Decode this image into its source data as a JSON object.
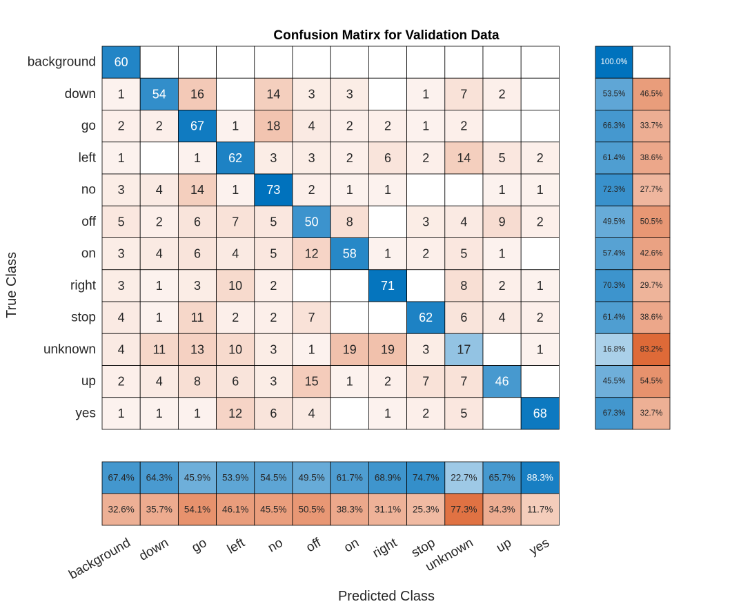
{
  "chart_data": {
    "type": "heatmap",
    "title": "Confusion Matirx for Validation Data",
    "xlabel": "Predicted Class",
    "ylabel": "True Class",
    "classes": [
      "background",
      "down",
      "go",
      "left",
      "no",
      "off",
      "on",
      "right",
      "stop",
      "unknown",
      "up",
      "yes"
    ],
    "matrix": [
      [
        60,
        0,
        0,
        0,
        0,
        0,
        0,
        0,
        0,
        0,
        0,
        0
      ],
      [
        1,
        54,
        16,
        0,
        14,
        3,
        3,
        0,
        1,
        7,
        2,
        0
      ],
      [
        2,
        2,
        67,
        1,
        18,
        4,
        2,
        2,
        1,
        2,
        0,
        0
      ],
      [
        1,
        0,
        1,
        62,
        3,
        3,
        2,
        6,
        2,
        14,
        5,
        2
      ],
      [
        3,
        4,
        14,
        1,
        73,
        2,
        1,
        1,
        0,
        0,
        1,
        1
      ],
      [
        5,
        2,
        6,
        7,
        5,
        50,
        8,
        0,
        3,
        4,
        9,
        2
      ],
      [
        3,
        4,
        6,
        4,
        5,
        12,
        58,
        1,
        2,
        5,
        1,
        0
      ],
      [
        3,
        1,
        3,
        10,
        2,
        0,
        0,
        71,
        0,
        8,
        2,
        1
      ],
      [
        4,
        1,
        11,
        2,
        2,
        7,
        0,
        0,
        62,
        6,
        4,
        2
      ],
      [
        4,
        11,
        13,
        10,
        3,
        1,
        19,
        19,
        3,
        17,
        0,
        1
      ],
      [
        2,
        4,
        8,
        6,
        3,
        15,
        1,
        2,
        7,
        7,
        46,
        0
      ],
      [
        1,
        1,
        1,
        12,
        6,
        4,
        0,
        1,
        2,
        5,
        0,
        68
      ]
    ],
    "row_summary": [
      [
        "100.0%",
        ""
      ],
      [
        "53.5%",
        "46.5%"
      ],
      [
        "66.3%",
        "33.7%"
      ],
      [
        "61.4%",
        "38.6%"
      ],
      [
        "72.3%",
        "27.7%"
      ],
      [
        "49.5%",
        "50.5%"
      ],
      [
        "57.4%",
        "42.6%"
      ],
      [
        "70.3%",
        "29.7%"
      ],
      [
        "61.4%",
        "38.6%"
      ],
      [
        "16.8%",
        "83.2%"
      ],
      [
        "45.5%",
        "54.5%"
      ],
      [
        "67.3%",
        "32.7%"
      ]
    ],
    "column_summary": {
      "correct": [
        "67.4%",
        "64.3%",
        "45.9%",
        "53.9%",
        "54.5%",
        "49.5%",
        "61.7%",
        "68.9%",
        "74.7%",
        "22.7%",
        "65.7%",
        "88.3%"
      ],
      "incorrect": [
        "32.6%",
        "35.7%",
        "54.1%",
        "46.1%",
        "45.5%",
        "50.5%",
        "38.3%",
        "31.1%",
        "25.3%",
        "77.3%",
        "34.3%",
        "11.7%"
      ]
    },
    "colors": {
      "correct_max": "#0072BD",
      "incorrect_max": "#D95319",
      "background": "#FFFFFF",
      "grid": "#000000"
    }
  }
}
